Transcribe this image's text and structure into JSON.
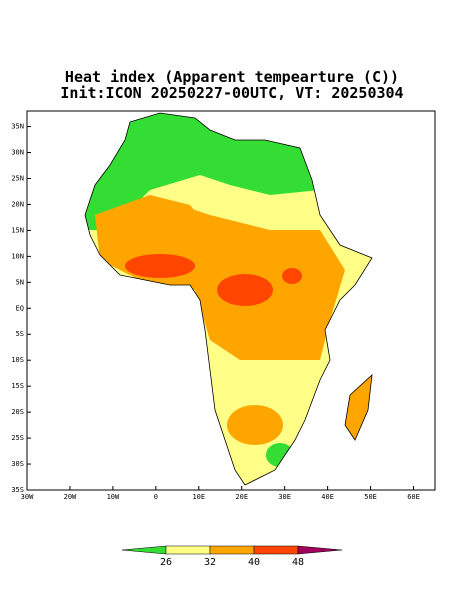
{
  "chart_data": {
    "type": "map",
    "title": "Heat index (Apparent tempearture (C))",
    "subtitle": "Init:ICON 20250227-00UTC, VT: 20250304",
    "xlim": [
      -30,
      65
    ],
    "ylim": [
      -35,
      38
    ],
    "xticks": [
      {
        "value": -30,
        "label": "30W"
      },
      {
        "value": -20,
        "label": "20W"
      },
      {
        "value": -10,
        "label": "10W"
      },
      0,
      {
        "value": 10,
        "label": "10E"
      },
      {
        "value": 20,
        "label": "20E"
      },
      {
        "value": 30,
        "label": "30E"
      },
      {
        "value": 40,
        "label": "40E"
      },
      {
        "value": 50,
        "label": "50E"
      },
      {
        "value": 60,
        "label": "60E"
      }
    ],
    "yticks": [
      {
        "value": 35,
        "label": "35N"
      },
      {
        "value": 30,
        "label": "30N"
      },
      {
        "value": 25,
        "label": "25N"
      },
      {
        "value": 20,
        "label": "20N"
      },
      {
        "value": 15,
        "label": "15N"
      },
      {
        "value": 10,
        "label": "10N"
      },
      {
        "value": 5,
        "label": "5N"
      },
      {
        "value": 0,
        "label": "EQ"
      },
      {
        "value": -5,
        "label": "5S"
      },
      {
        "value": -10,
        "label": "10S"
      },
      {
        "value": -15,
        "label": "15S"
      },
      {
        "value": -20,
        "label": "20S"
      },
      {
        "value": -25,
        "label": "25S"
      },
      {
        "value": -30,
        "label": "30S"
      },
      {
        "value": -35,
        "label": "35S"
      }
    ],
    "colorbar": {
      "levels": [
        26,
        32,
        40,
        48
      ],
      "colors": [
        "#33dd33",
        "#ffff88",
        "#ffa500",
        "#ff4500",
        "#a0005a"
      ]
    }
  }
}
